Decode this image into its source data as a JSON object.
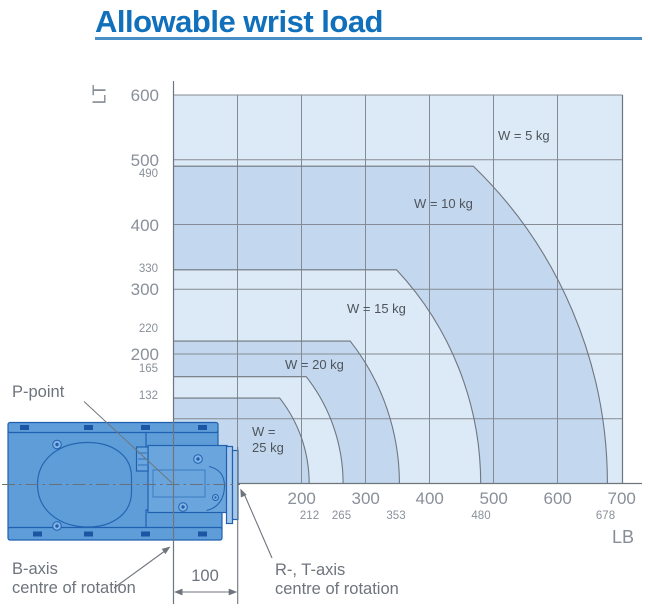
{
  "title": "Allowable wrist load",
  "colors": {
    "title_blue": "#1070bc",
    "underline_blue": "#4a8ec7",
    "region_light": "#dce9f6",
    "region_medium": "#c3d8ee",
    "grid_gray": "#858b94",
    "curve_gray": "#70767f",
    "robot_blue": "#5f9dd9",
    "robot_outline": "#1f61b0"
  },
  "chart_data": {
    "type": "area",
    "title": "Allowable wrist load",
    "x_axis": {
      "label": "LB",
      "range": [
        0,
        700
      ],
      "major_ticks": [
        200,
        300,
        400,
        500,
        600,
        700
      ],
      "minor_ticks": [
        212,
        265,
        353,
        480,
        678
      ]
    },
    "y_axis": {
      "label": "LT",
      "range": [
        0,
        600
      ],
      "major_ticks": [
        600,
        500,
        400,
        300,
        200
      ],
      "minor_ticks": [
        490,
        330,
        220,
        165,
        132
      ]
    },
    "grid": true,
    "series": [
      {
        "name": "W = 5 kg",
        "lt_max": 490,
        "lb_max": 678
      },
      {
        "name": "W = 10 kg",
        "lt_max": 330,
        "lb_max": 480
      },
      {
        "name": "W = 15 kg",
        "lt_max": 220,
        "lb_max": 353
      },
      {
        "name": "W = 20 kg",
        "lt_max": 165,
        "lb_max": 265
      },
      {
        "name": "W = 25 kg",
        "lt_max": 132,
        "lb_max": 212
      }
    ],
    "curve_labels": {
      "w5": "W = 5 kg",
      "w10": "W = 10 kg",
      "w15": "W = 15 kg",
      "w20": "W = 20 kg",
      "w25_line1": "W =",
      "w25_line2": "25 kg"
    }
  },
  "annotations": {
    "p_point": "P-point",
    "b_axis_line1": "B-axis",
    "b_axis_line2": "centre of rotation",
    "rt_axis_line1": "R-, T-axis",
    "rt_axis_line2": "centre of rotation",
    "dimension": "100"
  }
}
